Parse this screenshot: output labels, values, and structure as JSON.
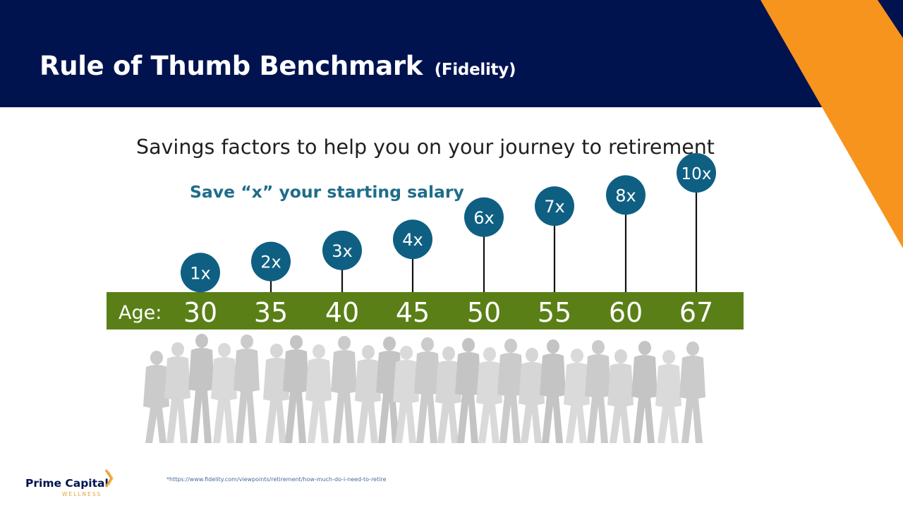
{
  "slide": {
    "title": "Rule of Thumb Benchmark",
    "title_suffix": "(Fidelity)"
  },
  "colors": {
    "header_bg": "#00134f",
    "stripe": "#f7941d",
    "bar": "#5a7f17",
    "bubble": "#0f5f83",
    "subheading": "#1e6d8a"
  },
  "chart_data": {
    "type": "bar",
    "title": "Savings factors to help you on your journey to retirement",
    "subtitle": "Save “x” your starting salary",
    "axis_label": "Age:",
    "categories": [
      "30",
      "35",
      "40",
      "45",
      "50",
      "55",
      "60",
      "67"
    ],
    "labels": [
      "1x",
      "2x",
      "3x",
      "4x",
      "6x",
      "7x",
      "8x",
      "10x"
    ],
    "values": [
      1,
      2,
      3,
      4,
      6,
      7,
      8,
      10
    ],
    "value_unit": "x salary"
  },
  "footer": {
    "logo_name": "Prime Capital",
    "logo_tagline": "WELLNESS",
    "footnote": "*https://www.fidelity.com/viewpoints/retirement/how-much-do-i-need-to-retire"
  }
}
